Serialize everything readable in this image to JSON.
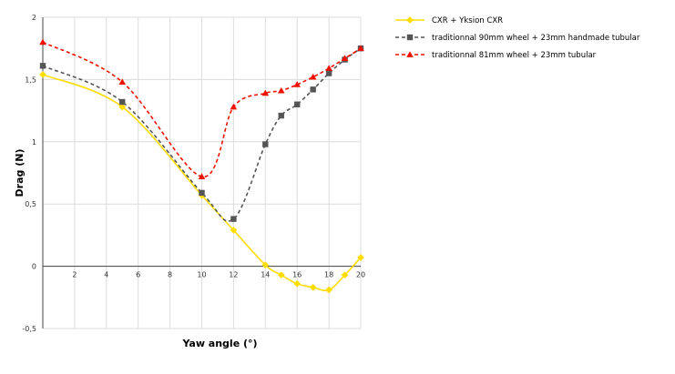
{
  "chart_data": {
    "type": "line",
    "title": "",
    "xlabel": "Yaw angle (°)",
    "ylabel": "Drag (N)",
    "xlim": [
      0,
      20
    ],
    "ylim": [
      -0.5,
      2
    ],
    "x_ticks": [
      "2",
      "4",
      "6",
      "8",
      "10",
      "12",
      "14",
      "16",
      "18",
      "20"
    ],
    "y_ticks": [
      "2",
      "1,5",
      "1",
      "0,5",
      "0",
      "-0,5"
    ],
    "x_tick_values": [
      2,
      4,
      6,
      8,
      10,
      12,
      14,
      16,
      18,
      20
    ],
    "y_tick_values": [
      2,
      1.5,
      1,
      0.5,
      0,
      -0.5
    ],
    "grid": true,
    "legend_position": "top-right",
    "series": [
      {
        "name": "CXR + Yksion CXR",
        "color": "#ffdd00",
        "dash": "solid",
        "marker": "diamond",
        "x": [
          0,
          5,
          10,
          12,
          14,
          15,
          16,
          17,
          18,
          19,
          20
        ],
        "y": [
          1.54,
          1.28,
          0.57,
          0.29,
          0.01,
          -0.07,
          -0.14,
          -0.17,
          -0.19,
          -0.07,
          0.07
        ]
      },
      {
        "name": "traditionnal 90mm wheel + 23mm handmade tubular",
        "color": "#555555",
        "dash": "dashed",
        "marker": "square",
        "x": [
          0,
          5,
          10,
          12,
          14,
          15,
          16,
          17,
          18,
          19,
          20
        ],
        "y": [
          1.61,
          1.32,
          0.59,
          0.38,
          0.98,
          1.21,
          1.3,
          1.42,
          1.55,
          1.66,
          1.75
        ]
      },
      {
        "name": "traditionnal 81mm wheel + 23mm tubular",
        "color": "#ee1100",
        "dash": "dashed",
        "marker": "triangle",
        "x": [
          0,
          5,
          10,
          12,
          14,
          15,
          16,
          17,
          18,
          19,
          20
        ],
        "y": [
          1.8,
          1.48,
          0.72,
          1.28,
          1.39,
          1.41,
          1.46,
          1.52,
          1.59,
          1.67,
          1.75
        ]
      }
    ]
  }
}
